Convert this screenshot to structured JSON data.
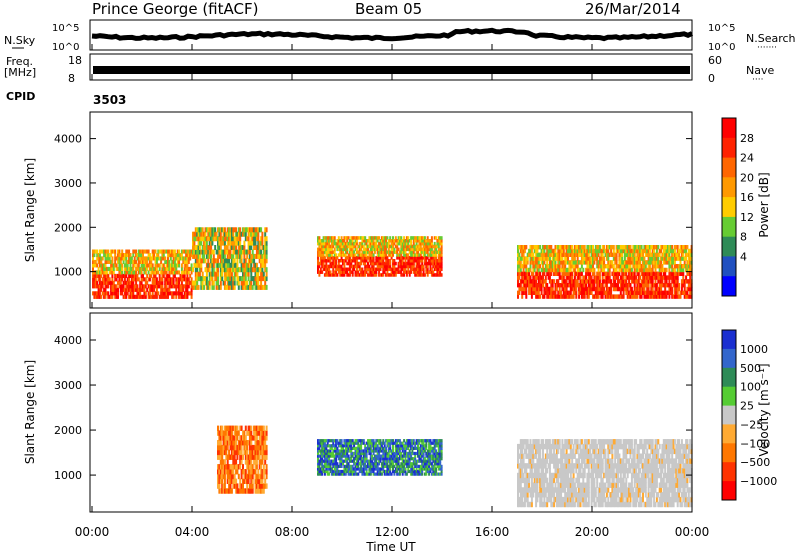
{
  "header": {
    "station": "Prince George (fitACF)",
    "beam": "Beam 05",
    "date": "26/Mar/2014"
  },
  "noise_panel": {
    "left_label": "N.Sky",
    "right_label": "N.Search",
    "right_legend": "·······",
    "yticks": [
      "10^5",
      "10^0"
    ]
  },
  "freq_panel": {
    "left_label_1": "Freq.",
    "left_label_2": "[MHz]",
    "left_ticks": [
      "18",
      "8"
    ],
    "right_label": "Nave",
    "right_legend": "····",
    "right_ticks": [
      "60",
      "0"
    ]
  },
  "cpid": {
    "label": "CPID",
    "value": "3503"
  },
  "power_panel": {
    "ylabel": "Slant Range [km]",
    "yticks": [
      "1000",
      "2000",
      "3000",
      "4000"
    ],
    "colorbar_label": "Power [dB]",
    "colorbar_ticks": [
      "4",
      "8",
      "12",
      "16",
      "20",
      "24",
      "28"
    ],
    "colors": [
      "#0000ff",
      "#2050c0",
      "#2e8b57",
      "#66cc33",
      "#ffcc00",
      "#ff9900",
      "#ff6600",
      "#ff2200",
      "#ff0000"
    ]
  },
  "velocity_panel": {
    "ylabel": "Slant Range [km]",
    "yticks": [
      "1000",
      "2000",
      "3000",
      "4000"
    ],
    "colorbar_label": "Velocity [m s⁻¹]",
    "colorbar_ticks": [
      "1000",
      "500",
      "100",
      "25",
      "−25",
      "−100",
      "−500",
      "−1000"
    ],
    "colors": [
      "#1a2fd0",
      "#3366cc",
      "#2e8b57",
      "#55cc33",
      "#c8c8c8",
      "#ffaa33",
      "#ff7700",
      "#ff3300",
      "#ff0000"
    ]
  },
  "xaxis": {
    "label": "Time UT",
    "ticks": [
      "00:00",
      "04:00",
      "08:00",
      "12:00",
      "16:00",
      "20:00",
      "00:00"
    ]
  },
  "chart_data": {
    "type": "heatmap",
    "x_range_hours": [
      0,
      24
    ],
    "y_range_km": [
      180,
      4600
    ],
    "power_bands": [
      {
        "t0": 0,
        "t1": 4,
        "r0": 400,
        "r1": 1500,
        "level": "high"
      },
      {
        "t0": 4,
        "t1": 7,
        "r0": 600,
        "r1": 2000,
        "level": "mid"
      },
      {
        "t0": 9,
        "t1": 14,
        "r0": 900,
        "r1": 1800,
        "level": "high"
      },
      {
        "t0": 17,
        "t1": 24,
        "r0": 400,
        "r1": 1600,
        "level": "high"
      }
    ],
    "velocity_bands": [
      {
        "t0": 5,
        "t1": 7,
        "r0": 600,
        "r1": 2100,
        "level": "negative"
      },
      {
        "t0": 9,
        "t1": 14,
        "r0": 1000,
        "r1": 1800,
        "level": "positive"
      },
      {
        "t0": 17,
        "t1": 24,
        "r0": 300,
        "r1": 1800,
        "level": "near-zero"
      }
    ]
  }
}
